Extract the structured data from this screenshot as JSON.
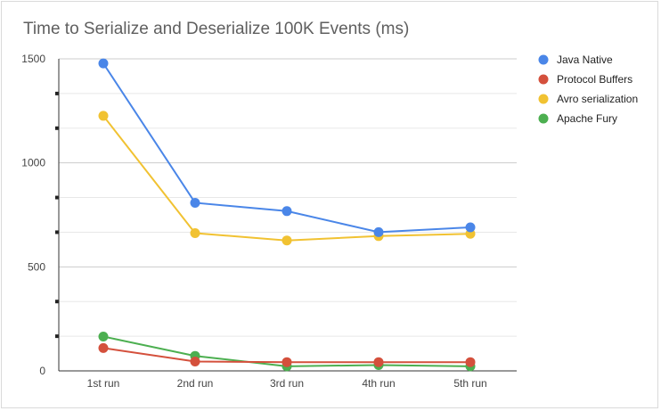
{
  "chart_data": {
    "type": "line",
    "title": "Time to Serialize and Deserialize 100K Events (ms)",
    "xlabel": "",
    "ylabel": "",
    "categories": [
      "1st run",
      "2nd run",
      "3rd run",
      "4th run",
      "5th run"
    ],
    "ylim": [
      0,
      1500
    ],
    "yticks": [
      0,
      500,
      1000,
      1500
    ],
    "grid": true,
    "legend_position": "right",
    "series": [
      {
        "name": "Java Native",
        "color": "#4a86e8",
        "values": [
          1478,
          808,
          768,
          667,
          690
        ]
      },
      {
        "name": "Protocol Buffers",
        "color": "#d4503c",
        "values": [
          110,
          45,
          42,
          42,
          42
        ]
      },
      {
        "name": "Avro serialization",
        "color": "#f1c232",
        "values": [
          1226,
          662,
          627,
          648,
          659
        ]
      },
      {
        "name": "Apache Fury",
        "color": "#4caf50",
        "values": [
          165,
          72,
          22,
          28,
          22
        ]
      }
    ]
  }
}
